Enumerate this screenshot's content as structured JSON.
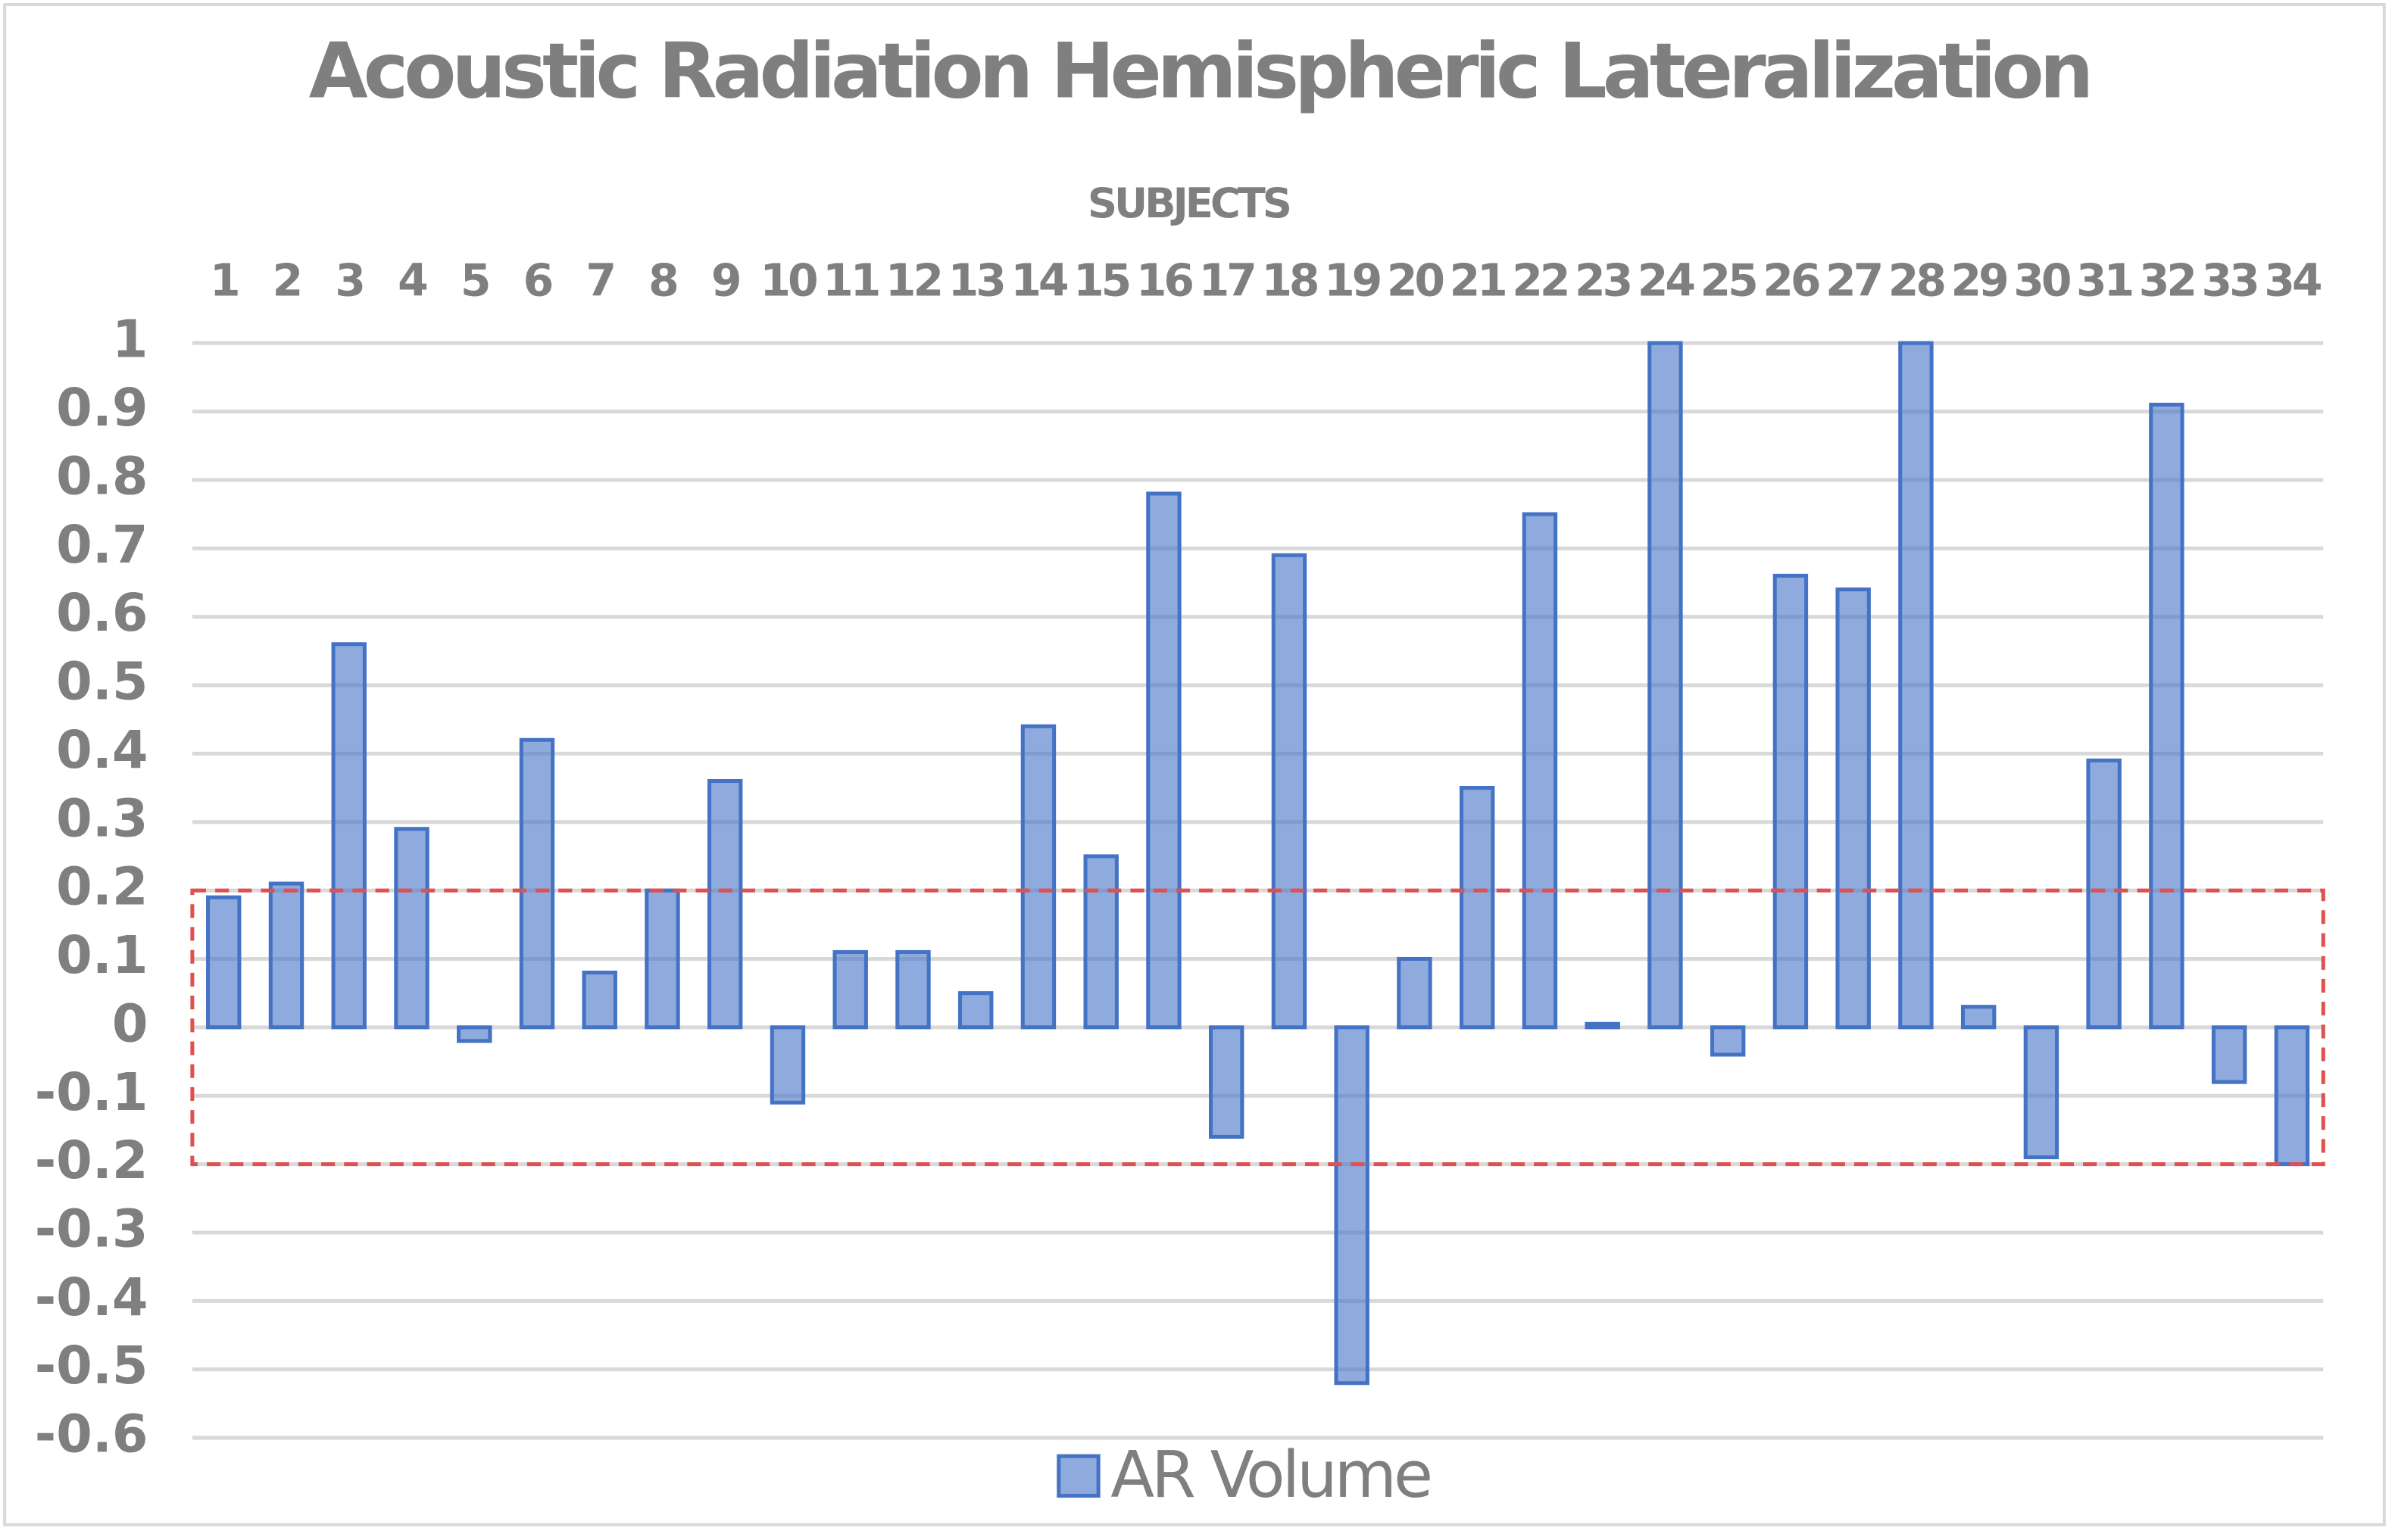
{
  "chart_data": {
    "type": "bar",
    "title": "Acoustic Radiation Hemispheric Lateralization",
    "x_label": "SUBJECTS",
    "categories": [
      "1",
      "2",
      "3",
      "4",
      "5",
      "6",
      "7",
      "8",
      "9",
      "10",
      "11",
      "12",
      "13",
      "14",
      "15",
      "16",
      "17",
      "18",
      "19",
      "20",
      "21",
      "22",
      "23",
      "24",
      "25",
      "26",
      "27",
      "28",
      "29",
      "30",
      "31",
      "32",
      "33",
      "34"
    ],
    "series": [
      {
        "name": "AR Volume",
        "color": "#4472c4",
        "values": [
          0.19,
          0.21,
          0.56,
          0.29,
          -0.02,
          0.42,
          0.08,
          0.2,
          0.36,
          -0.11,
          0.11,
          0.11,
          0.05,
          0.44,
          0.25,
          0.78,
          -0.16,
          0.69,
          -0.52,
          0.1,
          0.35,
          0.75,
          0.005,
          1,
          -0.04,
          0.66,
          0.64,
          1,
          0.03,
          -0.19,
          0.39,
          0.91,
          -0.08,
          -0.2
        ]
      }
    ],
    "ylim": [
      -0.6,
      1
    ],
    "yticks": [
      1,
      0.9,
      0.8,
      0.7,
      0.6,
      0.5,
      0.4,
      0.3,
      0.2,
      0.1,
      0,
      -0.1,
      -0.2,
      -0.3,
      -0.4,
      -0.5,
      -0.6
    ],
    "grid": true,
    "highlight_band": {
      "ylim": [
        -0.2,
        0.2
      ],
      "color": "#e05050"
    },
    "legend": "bottom"
  }
}
